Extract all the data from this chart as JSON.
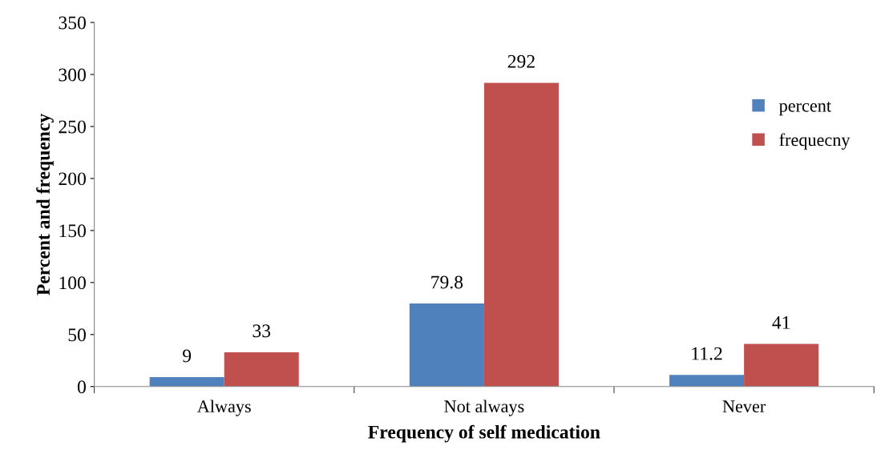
{
  "chart_data": {
    "type": "bar",
    "xlabel": "Frequency of self medication",
    "ylabel": "Percent and frequency",
    "categories": [
      "Always",
      "Not always",
      "Never"
    ],
    "series": [
      {
        "name": "percent",
        "color": "#4f81bd",
        "values": [
          9,
          79.8,
          11.2
        ]
      },
      {
        "name": "frequecny",
        "color": "#c0504d",
        "values": [
          33,
          292,
          41
        ]
      }
    ],
    "ylim": [
      0,
      350
    ],
    "yticks": [
      0,
      50,
      100,
      150,
      200,
      250,
      300,
      350
    ],
    "grid": false,
    "legend": "right",
    "data_labels": true
  }
}
